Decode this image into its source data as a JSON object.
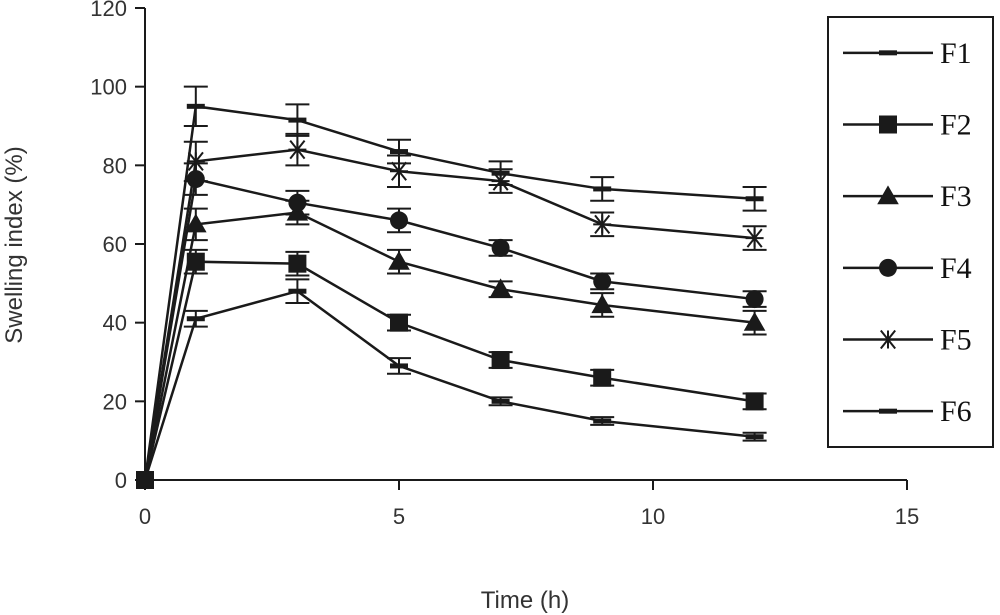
{
  "chart_data": {
    "type": "line",
    "title": "",
    "xlabel": "Time (h)",
    "ylabel": "Swelling index (%)",
    "xlim": [
      0,
      15
    ],
    "ylim": [
      0,
      120
    ],
    "xticks": [
      "0",
      "5",
      "10",
      "15"
    ],
    "yticks": [
      "0",
      "20",
      "40",
      "60",
      "80",
      "100",
      "120"
    ],
    "grid": false,
    "legend_position": "right",
    "x": [
      0,
      1,
      3,
      5,
      7,
      9,
      12
    ],
    "series": [
      {
        "name": "F1",
        "marker": "dash",
        "values": [
          0,
          41,
          48,
          29,
          20,
          15,
          11
        ],
        "errors": [
          0,
          2,
          3,
          2,
          1,
          1,
          1
        ]
      },
      {
        "name": "F2",
        "marker": "square",
        "values": [
          0,
          55.5,
          55,
          40,
          30.5,
          26,
          20
        ],
        "errors": [
          0,
          3,
          3,
          2,
          2,
          2,
          2
        ]
      },
      {
        "name": "F3",
        "marker": "triangle",
        "values": [
          0,
          65,
          68,
          55.5,
          48.5,
          44.5,
          40
        ],
        "errors": [
          0,
          4,
          3,
          3,
          2,
          3,
          3
        ]
      },
      {
        "name": "F4",
        "marker": "circle",
        "values": [
          0,
          76.5,
          70.5,
          66,
          59,
          50.5,
          46
        ],
        "errors": [
          0,
          4,
          3,
          3,
          2,
          2,
          2
        ]
      },
      {
        "name": "F5",
        "marker": "star",
        "values": [
          0,
          81,
          84,
          78.5,
          76,
          65,
          61.5
        ],
        "errors": [
          0,
          5,
          4,
          4,
          3,
          3,
          3
        ]
      },
      {
        "name": "F6",
        "marker": "dash",
        "values": [
          0,
          95,
          91.5,
          83.5,
          78,
          74,
          71.5
        ],
        "errors": [
          0,
          5,
          4,
          3,
          3,
          3,
          3
        ]
      }
    ]
  }
}
